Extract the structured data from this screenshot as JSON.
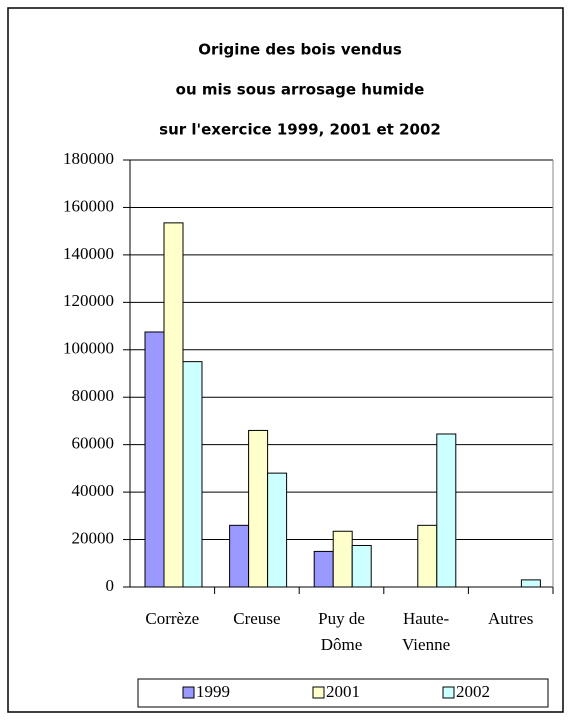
{
  "chart_data": {
    "type": "bar",
    "title": [
      "Origine des bois vendus",
      "ou mis sous arrosage humide",
      "sur l'exercice 1999, 2001 et 2002"
    ],
    "categories": [
      "Corrèze",
      "Creuse",
      "Puy de Dôme",
      "Haute-Vienne",
      "Autres"
    ],
    "series": [
      {
        "name": "1999",
        "color": "#9999ff",
        "values": [
          107500,
          26000,
          15000,
          null,
          null
        ]
      },
      {
        "name": "2001",
        "color": "#ffffcc",
        "values": [
          153500,
          66000,
          23500,
          26000,
          null
        ]
      },
      {
        "name": "2002",
        "color": "#ccffff",
        "values": [
          95000,
          48000,
          17500,
          64500,
          3000
        ]
      }
    ],
    "ylim": [
      0,
      180000
    ],
    "yticks": [
      0,
      20000,
      40000,
      60000,
      80000,
      100000,
      120000,
      140000,
      160000,
      180000
    ],
    "grid": true,
    "legend": "bottom"
  }
}
